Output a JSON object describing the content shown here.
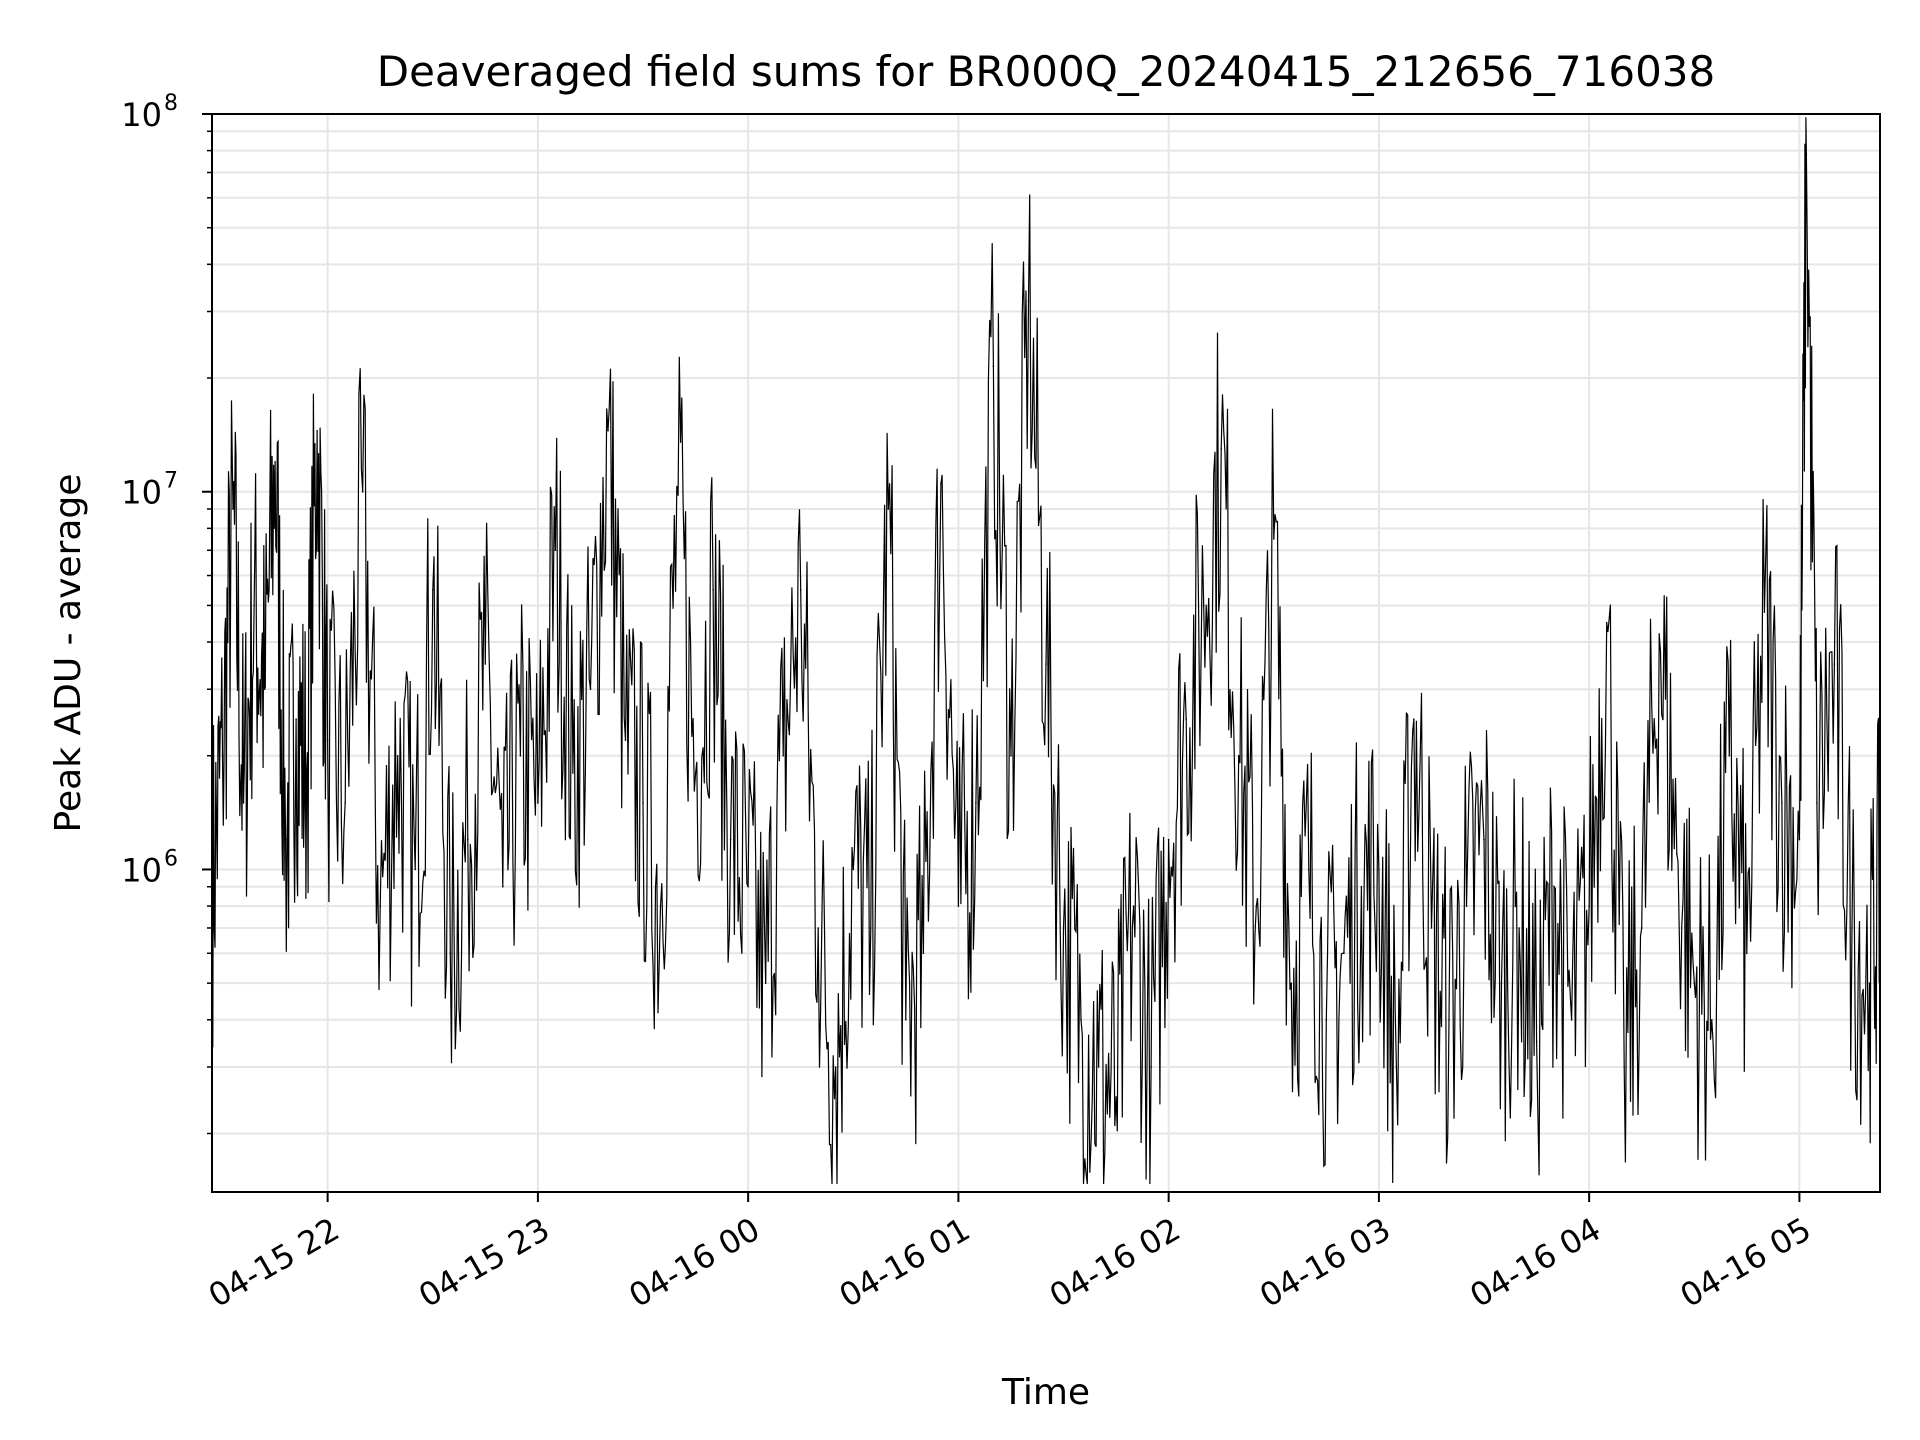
{
  "chart_data": {
    "type": "line",
    "title": "Deaveraged field sums for BR000Q_20240415_212656_716038",
    "xlabel": "Time",
    "ylabel": "Peak ADU - average",
    "y_scale": "log",
    "ylim": [
      140000,
      100000000
    ],
    "xlim": [
      "2024-04-15 21:27",
      "2024-04-16 05:23"
    ],
    "x_ticks": [
      {
        "label": "04-15 22",
        "time": "2024-04-15 22:00"
      },
      {
        "label": "04-15 23",
        "time": "2024-04-15 23:00"
      },
      {
        "label": "04-16 00",
        "time": "2024-04-16 00:00"
      },
      {
        "label": "04-16 01",
        "time": "2024-04-16 01:00"
      },
      {
        "label": "04-16 02",
        "time": "2024-04-16 02:00"
      },
      {
        "label": "04-16 03",
        "time": "2024-04-16 03:00"
      },
      {
        "label": "04-16 04",
        "time": "2024-04-16 04:00"
      },
      {
        "label": "04-16 05",
        "time": "2024-04-16 05:00"
      }
    ],
    "y_ticks": [
      {
        "base": "10",
        "exp": "6",
        "value": 1000000
      },
      {
        "base": "10",
        "exp": "7",
        "value": 10000000
      },
      {
        "base": "10",
        "exp": "8",
        "value": 100000000
      }
    ],
    "grid": true,
    "line_color": "#000000",
    "grid_color": "#e6e6e6",
    "series": [
      {
        "x": [
          "2024-04-15 21:27",
          "2024-04-15 21:30",
          "2024-04-15 21:33",
          "2024-04-15 21:36",
          "2024-04-15 21:39",
          "2024-04-15 21:42",
          "2024-04-15 21:45",
          "2024-04-15 21:48",
          "2024-04-15 21:51",
          "2024-04-15 21:54",
          "2024-04-15 21:57",
          "2024-04-15 22:00",
          "2024-04-15 22:05",
          "2024-04-15 22:10",
          "2024-04-15 22:15",
          "2024-04-15 22:20",
          "2024-04-15 22:25",
          "2024-04-15 22:30",
          "2024-04-15 22:35",
          "2024-04-15 22:40",
          "2024-04-15 22:45",
          "2024-04-15 22:50",
          "2024-04-15 22:55",
          "2024-04-15 23:00",
          "2024-04-15 23:05",
          "2024-04-15 23:10",
          "2024-04-15 23:15",
          "2024-04-15 23:20",
          "2024-04-15 23:25",
          "2024-04-15 23:30",
          "2024-04-15 23:35",
          "2024-04-15 23:40",
          "2024-04-15 23:45",
          "2024-04-15 23:50",
          "2024-04-15 23:55",
          "2024-04-16 00:00",
          "2024-04-16 00:05",
          "2024-04-16 00:10",
          "2024-04-16 00:15",
          "2024-04-16 00:20",
          "2024-04-16 00:25",
          "2024-04-16 00:30",
          "2024-04-16 00:35",
          "2024-04-16 00:40",
          "2024-04-16 00:45",
          "2024-04-16 00:50",
          "2024-04-16 00:55",
          "2024-04-16 01:00",
          "2024-04-16 01:05",
          "2024-04-16 01:10",
          "2024-04-16 01:15",
          "2024-04-16 01:20",
          "2024-04-16 01:25",
          "2024-04-16 01:30",
          "2024-04-16 01:35",
          "2024-04-16 01:40",
          "2024-04-16 01:45",
          "2024-04-16 01:50",
          "2024-04-16 01:55",
          "2024-04-16 02:00",
          "2024-04-16 02:05",
          "2024-04-16 02:10",
          "2024-04-16 02:15",
          "2024-04-16 02:20",
          "2024-04-16 02:25",
          "2024-04-16 02:30",
          "2024-04-16 02:35",
          "2024-04-16 02:40",
          "2024-04-16 02:45",
          "2024-04-16 02:50",
          "2024-04-16 02:55",
          "2024-04-16 03:00",
          "2024-04-16 03:05",
          "2024-04-16 03:10",
          "2024-04-16 03:15",
          "2024-04-16 03:20",
          "2024-04-16 03:25",
          "2024-04-16 03:30",
          "2024-04-16 03:35",
          "2024-04-16 03:40",
          "2024-04-16 03:45",
          "2024-04-16 03:50",
          "2024-04-16 03:55",
          "2024-04-16 04:00",
          "2024-04-16 04:05",
          "2024-04-16 04:10",
          "2024-04-16 04:15",
          "2024-04-16 04:20",
          "2024-04-16 04:25",
          "2024-04-16 04:30",
          "2024-04-16 04:35",
          "2024-04-16 04:40",
          "2024-04-16 04:45",
          "2024-04-16 04:50",
          "2024-04-16 04:55",
          "2024-04-16 05:00",
          "2024-04-16 05:02",
          "2024-04-16 05:05",
          "2024-04-16 05:10",
          "2024-04-16 05:15",
          "2024-04-16 05:20",
          "2024-04-16 05:23"
        ],
        "values": [
          900000,
          2000000,
          9000000,
          1500000,
          5000000,
          3000000,
          12000000,
          1200000,
          2500000,
          1800000,
          14500000,
          2200000,
          1500000,
          10000000,
          800000,
          2000000,
          1000000,
          5500000,
          600000,
          1200000,
          3500000,
          900000,
          2000000,
          1500000,
          7000000,
          1800000,
          3000000,
          14500000,
          2200000,
          1500000,
          800000,
          9800000,
          1800000,
          5500000,
          1200000,
          900000,
          500000,
          2000000,
          5500000,
          700000,
          300000,
          1000000,
          700000,
          9000000,
          400000,
          600000,
          10500000,
          800000,
          1500000,
          21500000,
          2000000,
          32000000,
          3500000,
          700000,
          400000,
          300000,
          250000,
          800000,
          300000,
          1200000,
          2500000,
          5000000,
          13000000,
          2000000,
          800000,
          7500000,
          500000,
          1000000,
          400000,
          600000,
          900000,
          1000000,
          300000,
          2500000,
          700000,
          400000,
          800000,
          1200000,
          500000,
          700000,
          350000,
          900000,
          400000,
          800000,
          4500000,
          300000,
          700000,
          4200000,
          1100000,
          500000,
          400000,
          2000000,
          600000,
          4800000,
          1500000,
          1200000,
          78000000,
          1500000,
          3500000,
          700000,
          500000,
          1000000
        ]
      }
    ]
  }
}
